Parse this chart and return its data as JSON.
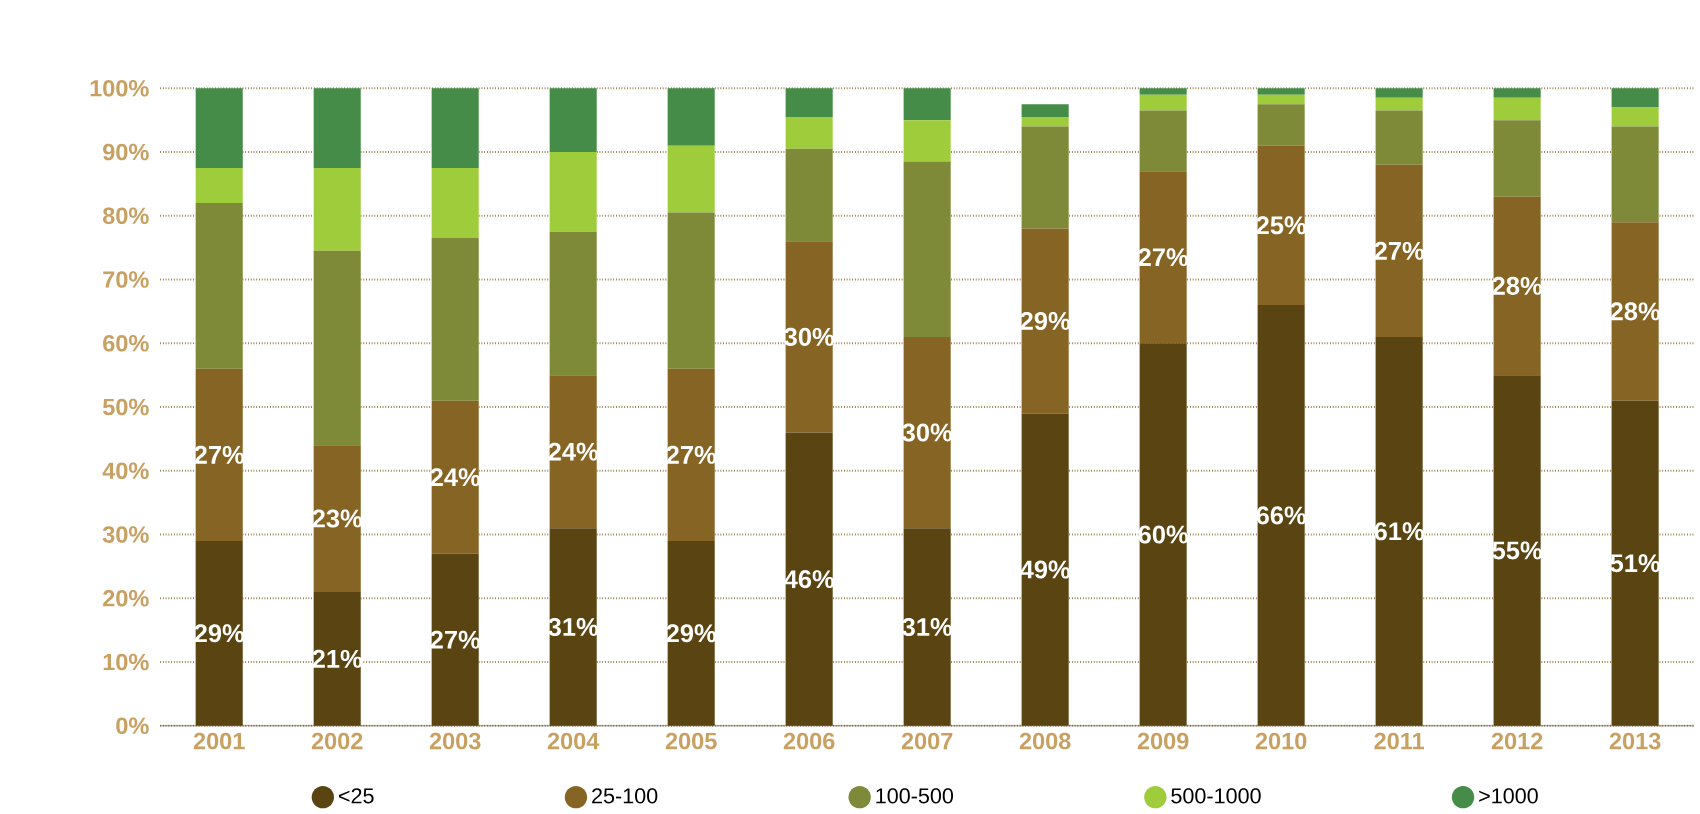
{
  "chart_data": {
    "type": "bar",
    "stacked": true,
    "grid": "y",
    "legend": "bottom",
    "categories": [
      "2001",
      "2002",
      "2003",
      "2004",
      "2005",
      "2006",
      "2007",
      "2008",
      "2009",
      "2010",
      "2011",
      "2012",
      "2013"
    ],
    "ylim": [
      0,
      100
    ],
    "yticks": [
      {
        "value": 0,
        "label": "0%"
      },
      {
        "value": 10,
        "label": "10%"
      },
      {
        "value": 20,
        "label": "20%"
      },
      {
        "value": 30,
        "label": "30%"
      },
      {
        "value": 40,
        "label": "40%"
      },
      {
        "value": 50,
        "label": "50%"
      },
      {
        "value": 60,
        "label": "60%"
      },
      {
        "value": 70,
        "label": "70%"
      },
      {
        "value": 80,
        "label": "80%"
      },
      {
        "value": 90,
        "label": "90%"
      },
      {
        "value": 100,
        "label": "100%"
      }
    ],
    "series": [
      {
        "name": "<25",
        "color": "#5a4512",
        "values": [
          29,
          21,
          27,
          31,
          29,
          46,
          31,
          49,
          60,
          66,
          61,
          55,
          51
        ],
        "value_labels": [
          "29%",
          "21%",
          "27%",
          "31%",
          "29%",
          "46%",
          "31%",
          "49%",
          "60%",
          "66%",
          "61%",
          "55%",
          "51%"
        ]
      },
      {
        "name": "25-100",
        "color": "#866424",
        "values": [
          27,
          23,
          24,
          24,
          27,
          30,
          30,
          29,
          27,
          25,
          27,
          28,
          28
        ],
        "value_labels": [
          "27%",
          "23%",
          "24%",
          "24%",
          "27%",
          "30%",
          "30%",
          "29%",
          "27%",
          "25%",
          "27%",
          "28%",
          "28%"
        ]
      },
      {
        "name": "100-500",
        "color": "#7e8a37",
        "values": [
          26,
          30.5,
          25.5,
          22.5,
          24.5,
          14.5,
          27.5,
          16,
          9.5,
          6.5,
          8.5,
          12,
          15
        ]
      },
      {
        "name": "500-1000",
        "color": "#9fcc3b",
        "values": [
          5.5,
          13,
          11,
          12.5,
          10.5,
          5,
          6.5,
          1.5,
          2.5,
          1.5,
          2,
          3.5,
          3
        ]
      },
      {
        "name": ">1000",
        "color": "#448c47",
        "values": [
          12.5,
          12.5,
          12.5,
          10,
          9,
          4.5,
          5,
          2,
          1,
          1,
          1.5,
          1.5,
          3
        ]
      }
    ]
  }
}
